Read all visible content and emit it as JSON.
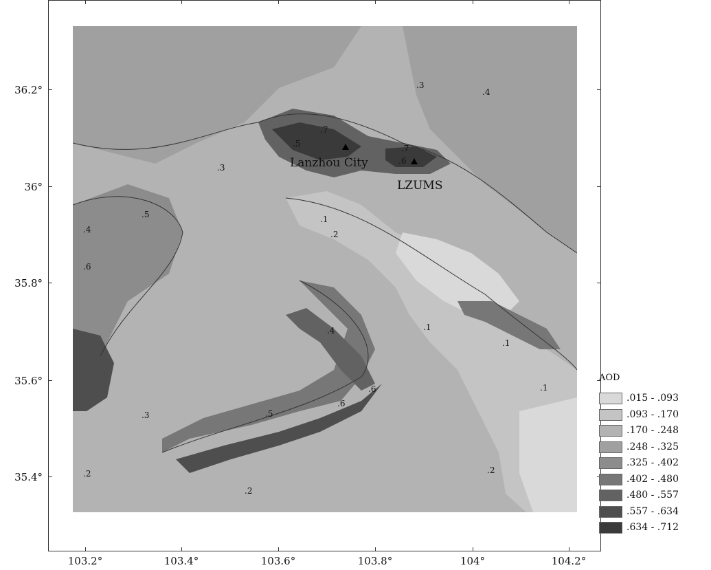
{
  "legend": {
    "title": "AOD",
    "classes": [
      {
        "range": ".015 - .093",
        "color": "#d9d9d9"
      },
      {
        "range": ".093 - .170",
        "color": "#c4c4c4"
      },
      {
        "range": ".170 - .248",
        "color": "#b3b3b3"
      },
      {
        "range": ".248 - .325",
        "color": "#a0a0a0"
      },
      {
        "range": ".325 - .402",
        "color": "#8c8c8c"
      },
      {
        "range": ".402 - .480",
        "color": "#777777"
      },
      {
        "range": ".480 - .557",
        "color": "#626262"
      },
      {
        "range": ".557 - .634",
        "color": "#4e4e4e"
      },
      {
        "range": ".634 - .712",
        "color": "#3a3a3a"
      }
    ]
  },
  "axes": {
    "y_ticks": [
      "36.2°",
      "36°",
      "35.8°",
      "35.6°",
      "35.4°"
    ],
    "x_ticks": [
      "103.2°",
      "103.4°",
      "103.6°",
      "103.8°",
      "104°",
      "104.2°"
    ]
  },
  "places": {
    "city": "Lanzhou City",
    "station": "LZUMS"
  },
  "contour_labels": [
    ".1",
    ".2",
    ".3",
    ".4",
    ".5",
    ".6",
    ".7"
  ]
}
